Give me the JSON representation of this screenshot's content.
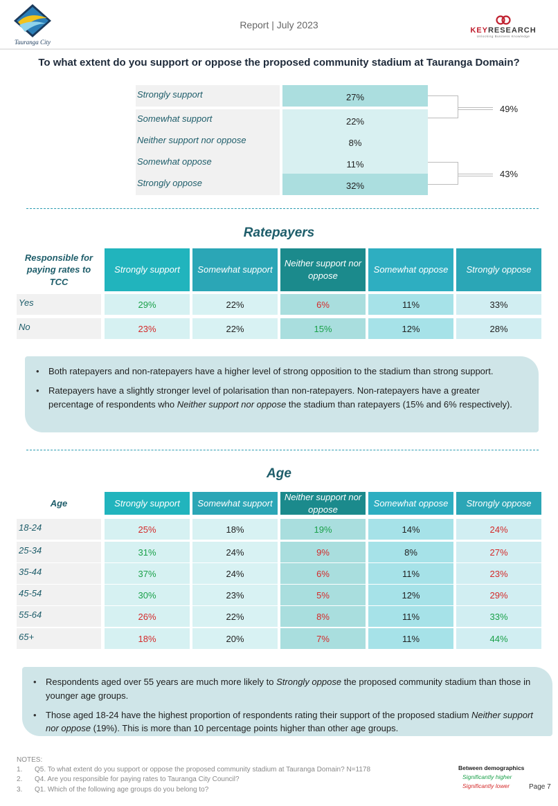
{
  "header": {
    "logo_city": "Tauranga City",
    "report_title": "Report | July 2023",
    "keyresearch_key": "KEY",
    "keyresearch_research": "RESEARCH",
    "keyresearch_tagline": "Unlocking Business Knowledge"
  },
  "main_question": "To what extent do you support or oppose the proposed community stadium at Tauranga Domain?",
  "summary": {
    "rows": [
      {
        "label": "Strongly support",
        "value": "27%",
        "shade": "#abdedf"
      },
      {
        "label": "Somewhat support",
        "value": "22%",
        "shade": "#d8f0f1"
      },
      {
        "label": "Neither support nor oppose",
        "value": "8%",
        "shade": "#d8f0f1"
      },
      {
        "label": "Somewhat oppose",
        "value": "11%",
        "shade": "#d8f0f1"
      },
      {
        "label": "Strongly oppose",
        "value": "32%",
        "shade": "#abdedf"
      }
    ],
    "net_support": "49%",
    "net_oppose": "43%"
  },
  "columns": [
    "Strongly support",
    "Somewhat support",
    "Neither support nor oppose",
    "Somewhat oppose",
    "Strongly oppose"
  ],
  "column_colors": [
    "#21b4bd",
    "#2ba6b6",
    "#1b8a8c",
    "#2eaec1",
    "#2ba6b6"
  ],
  "cell_colors": [
    "#d6f1f2",
    "#d8f2f3",
    "#a9dede",
    "#a6e2e8",
    "#d1eef2"
  ],
  "ratepayers": {
    "title": "Ratepayers",
    "corner": "Responsible for paying rates to TCC",
    "rows": [
      {
        "label": "Yes",
        "values": [
          {
            "v": "29%",
            "sig": "hi"
          },
          {
            "v": "22%",
            "sig": ""
          },
          {
            "v": "6%",
            "sig": "lo"
          },
          {
            "v": "11%",
            "sig": ""
          },
          {
            "v": "33%",
            "sig": ""
          }
        ]
      },
      {
        "label": "No",
        "values": [
          {
            "v": "23%",
            "sig": "lo"
          },
          {
            "v": "22%",
            "sig": ""
          },
          {
            "v": "15%",
            "sig": "hi"
          },
          {
            "v": "12%",
            "sig": ""
          },
          {
            "v": "28%",
            "sig": ""
          }
        ]
      }
    ]
  },
  "ratepayer_notes": {
    "b1": "Both ratepayers and non-ratepayers have a higher level of strong opposition to the stadium than strong support.",
    "b2_pre": "Ratepayers have a slightly stronger level of polarisation than non-ratepayers.  Non-ratepayers have a greater percentage of respondents who ",
    "b2_em": "Neither support nor oppose",
    "b2_post": " the stadium than ratepayers (15% and 6% respectively)."
  },
  "age": {
    "title": "Age",
    "corner": "Age",
    "rows": [
      {
        "label": "18-24",
        "values": [
          {
            "v": "25%",
            "sig": "lo"
          },
          {
            "v": "18%",
            "sig": ""
          },
          {
            "v": "19%",
            "sig": "hi"
          },
          {
            "v": "14%",
            "sig": ""
          },
          {
            "v": "24%",
            "sig": "lo"
          }
        ]
      },
      {
        "label": "25-34",
        "values": [
          {
            "v": "31%",
            "sig": "hi"
          },
          {
            "v": "24%",
            "sig": ""
          },
          {
            "v": "9%",
            "sig": "lo"
          },
          {
            "v": "8%",
            "sig": ""
          },
          {
            "v": "27%",
            "sig": "lo"
          }
        ]
      },
      {
        "label": "35-44",
        "values": [
          {
            "v": "37%",
            "sig": "hi"
          },
          {
            "v": "24%",
            "sig": ""
          },
          {
            "v": "6%",
            "sig": "lo"
          },
          {
            "v": "11%",
            "sig": ""
          },
          {
            "v": "23%",
            "sig": "lo"
          }
        ]
      },
      {
        "label": "45-54",
        "values": [
          {
            "v": "30%",
            "sig": "hi"
          },
          {
            "v": "23%",
            "sig": ""
          },
          {
            "v": "5%",
            "sig": "lo"
          },
          {
            "v": "12%",
            "sig": ""
          },
          {
            "v": "29%",
            "sig": "lo"
          }
        ]
      },
      {
        "label": "55-64",
        "values": [
          {
            "v": "26%",
            "sig": "lo"
          },
          {
            "v": "22%",
            "sig": ""
          },
          {
            "v": "8%",
            "sig": "lo"
          },
          {
            "v": "11%",
            "sig": ""
          },
          {
            "v": "33%",
            "sig": "hi"
          }
        ]
      },
      {
        "label": "65+",
        "values": [
          {
            "v": "18%",
            "sig": "lo"
          },
          {
            "v": "20%",
            "sig": ""
          },
          {
            "v": "7%",
            "sig": "lo"
          },
          {
            "v": "11%",
            "sig": ""
          },
          {
            "v": "44%",
            "sig": "hi"
          }
        ]
      }
    ]
  },
  "age_notes": {
    "b1_pre": "Respondents aged over 55 years are much more likely to ",
    "b1_em": "Strongly oppose",
    "b1_post": " the proposed community stadium than those in younger age groups.",
    "b2_pre": "Those aged 18-24 have the highest proportion of respondents rating their support of the proposed stadium ",
    "b2_em": "Neither support nor oppose",
    "b2_post": " (19%). This is more than 10 percentage points higher than other age groups."
  },
  "footer": {
    "notes_title": "NOTES:",
    "notes": [
      {
        "num": "1.",
        "text": "Q5. To what extent do you support or oppose the proposed community stadium at Tauranga Domain? N=1178"
      },
      {
        "num": "2.",
        "text": "Q4. Are you responsible for paying rates to Tauranga City Council?"
      },
      {
        "num": "3.",
        "text": "Q1. Which of the following age groups do you belong to?"
      }
    ],
    "legend_title": "Between demographics",
    "legend_higher": "Significantly higher",
    "legend_lower": "Significantly lower",
    "page": "Page 7"
  },
  "colors": {
    "accent_teal": "#1e5d6a",
    "sig_higher": "#1aa049",
    "sig_lower": "#d42a2a",
    "note_bg": "#cfe5e8"
  }
}
